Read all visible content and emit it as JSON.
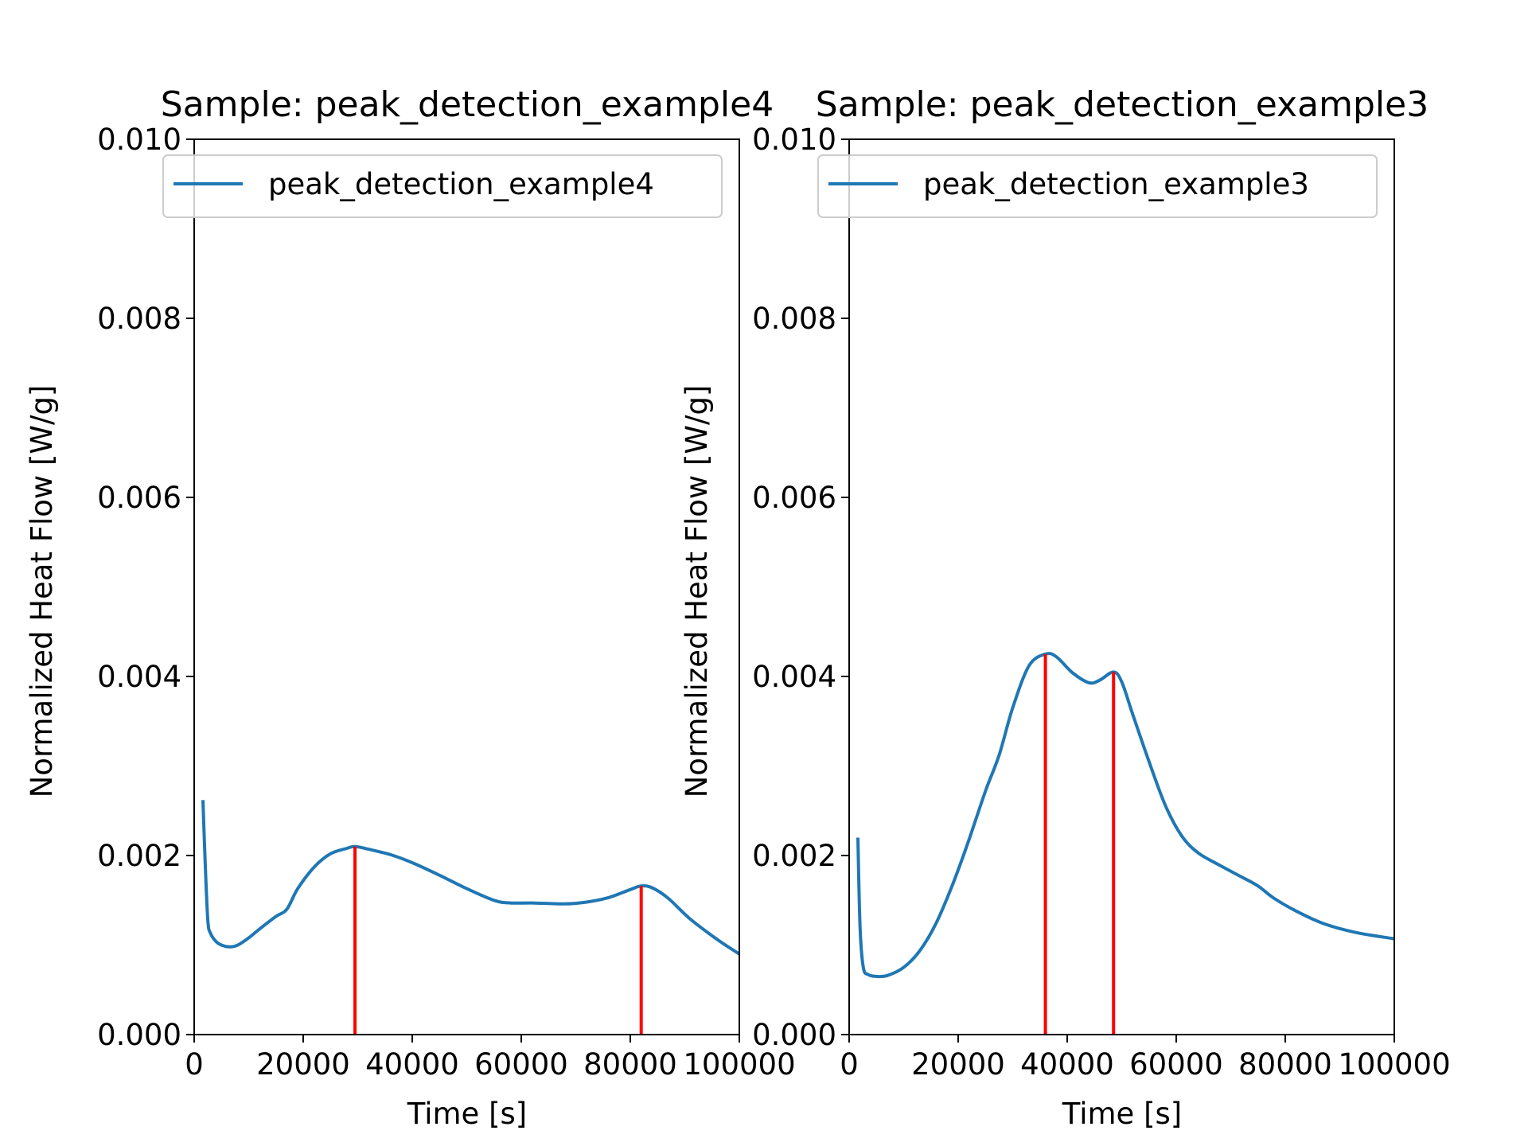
{
  "colors": {
    "line": "#1f77b4",
    "peak": "#ff0000",
    "axis": "#000000",
    "legend_border": "#cccccc",
    "background": "#ffffff"
  },
  "chart_data": [
    {
      "type": "line",
      "title": "Sample: peak_detection_example4",
      "xlabel": "Time [s]",
      "ylabel": "Normalized Heat Flow [W/g]",
      "xlim": [
        0,
        100000
      ],
      "ylim": [
        0,
        0.01
      ],
      "x_ticks": [
        "0",
        "20000",
        "40000",
        "60000",
        "80000",
        "100000"
      ],
      "y_ticks": [
        "0.000",
        "0.002",
        "0.004",
        "0.006",
        "0.008",
        "0.010"
      ],
      "grid": false,
      "legend": {
        "position": "top",
        "entries": [
          "peak_detection_example4"
        ]
      },
      "series": [
        {
          "name": "peak_detection_example4",
          "x": [
            1600,
            2000,
            2500,
            3000,
            4000,
            5000,
            6500,
            8000,
            10000,
            12000,
            15000,
            17000,
            19000,
            22000,
            25000,
            28000,
            29500,
            32000,
            36000,
            40000,
            45000,
            50000,
            55000,
            58000,
            62000,
            68000,
            72000,
            76000,
            80000,
            82000,
            84000,
            87000,
            91000,
            96000,
            100000
          ],
          "y": [
            0.00262,
            0.00195,
            0.00128,
            0.00113,
            0.00104,
            0.001,
            0.00098,
            0.001,
            0.00108,
            0.00118,
            0.00132,
            0.0014,
            0.00163,
            0.00187,
            0.00202,
            0.00208,
            0.0021,
            0.00207,
            0.00201,
            0.00192,
            0.00178,
            0.00163,
            0.0015,
            0.00147,
            0.00147,
            0.00146,
            0.00148,
            0.00153,
            0.00162,
            0.00166,
            0.00164,
            0.00152,
            0.00129,
            0.00106,
            0.0009
          ]
        }
      ],
      "peaks": [
        29500,
        82000
      ]
    },
    {
      "type": "line",
      "title": "Sample: peak_detection_example3",
      "xlabel": "Time [s]",
      "ylabel": "Normalized Heat Flow [W/g]",
      "xlim": [
        0,
        100000
      ],
      "ylim": [
        0,
        0.01
      ],
      "x_ticks": [
        "0",
        "20000",
        "40000",
        "60000",
        "80000",
        "100000"
      ],
      "y_ticks": [
        "0.000",
        "0.002",
        "0.004",
        "0.006",
        "0.008",
        "0.010"
      ],
      "grid": false,
      "legend": {
        "position": "top",
        "entries": [
          "peak_detection_example3"
        ]
      },
      "series": [
        {
          "name": "peak_detection_example3",
          "x": [
            1600,
            2000,
            2600,
            3500,
            5000,
            7000,
            10000,
            13000,
            16000,
            19000,
            22000,
            25000,
            27500,
            30000,
            33000,
            36000,
            38000,
            41000,
            44000,
            46000,
            48500,
            50000,
            52000,
            55000,
            58000,
            61000,
            64000,
            68000,
            72000,
            75000,
            78000,
            82000,
            87000,
            93000,
            100000
          ],
          "y": [
            0.0022,
            0.0012,
            0.00075,
            0.00067,
            0.00065,
            0.00066,
            0.00075,
            0.00094,
            0.00125,
            0.00168,
            0.00218,
            0.00272,
            0.00312,
            0.00365,
            0.00412,
            0.00425,
            0.00422,
            0.00404,
            0.00393,
            0.00396,
            0.00405,
            0.00394,
            0.00358,
            0.00305,
            0.00256,
            0.00222,
            0.00203,
            0.00189,
            0.00176,
            0.00166,
            0.00152,
            0.00138,
            0.00124,
            0.00114,
            0.00107
          ]
        }
      ],
      "peaks": [
        36000,
        48500
      ]
    }
  ]
}
